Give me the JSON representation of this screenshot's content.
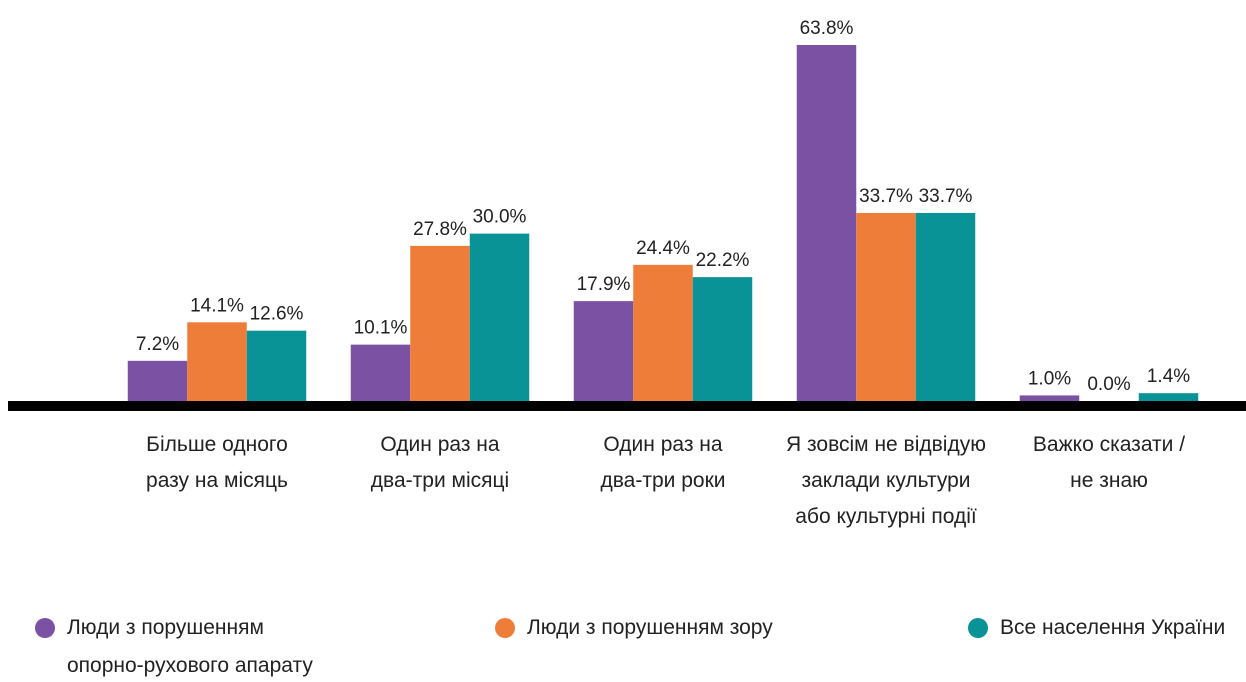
{
  "chart_data": {
    "type": "bar",
    "categories": [
      "Більше одного\nразу на місяць",
      "Один раз на\nдва-три місяці",
      "Один раз на\nдва-три роки",
      "Я зовсім не відвідую\nзаклади культури\nабо культурні події",
      "Важко сказати /\nне знаю"
    ],
    "series": [
      {
        "name": "Люди з порушенням\nопорно-рухового апарату",
        "color": "#7b52a3",
        "values": [
          7.2,
          10.1,
          17.9,
          63.8,
          1.0
        ],
        "value_labels": [
          "7.2%",
          "10.1%",
          "17.9%",
          "63.8%",
          "1.0%"
        ]
      },
      {
        "name": "Люди з порушенням зору",
        "color": "#ef7d3a",
        "values": [
          14.1,
          27.8,
          24.4,
          33.7,
          0.0
        ],
        "value_labels": [
          "14.1%",
          "27.8%",
          "24.4%",
          "33.7%",
          "0.0%"
        ]
      },
      {
        "name": "Все населення України",
        "color": "#0a9396",
        "values": [
          12.6,
          30.0,
          22.2,
          33.7,
          1.4
        ],
        "value_labels": [
          "12.6%",
          "30.0%",
          "22.2%",
          "33.7%",
          "1.4%"
        ]
      }
    ]
  }
}
